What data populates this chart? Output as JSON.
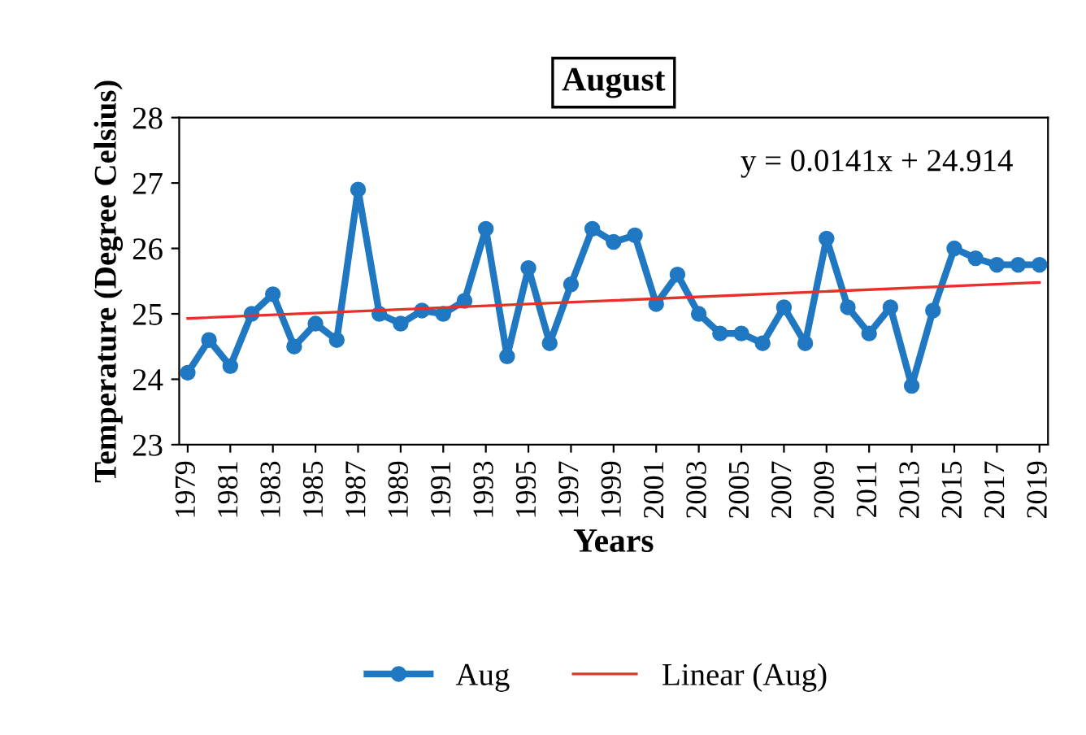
{
  "chart_data": {
    "type": "line",
    "title": "August",
    "xlabel": "Years",
    "ylabel": "Temperature (Degree Celsius)",
    "x": [
      1979,
      1980,
      1981,
      1982,
      1983,
      1984,
      1985,
      1986,
      1987,
      1988,
      1989,
      1990,
      1991,
      1992,
      1993,
      1994,
      1995,
      1996,
      1997,
      1998,
      1999,
      2000,
      2001,
      2002,
      2003,
      2004,
      2005,
      2006,
      2007,
      2008,
      2009,
      2010,
      2011,
      2012,
      2013,
      2014,
      2015,
      2016,
      2017,
      2018,
      2019
    ],
    "series": [
      {
        "name": "Aug",
        "color": "#1f78c1",
        "marker": "circle",
        "values": [
          24.1,
          24.6,
          24.2,
          25.0,
          25.3,
          24.5,
          24.85,
          24.6,
          26.9,
          25.0,
          24.85,
          25.05,
          25.0,
          25.2,
          26.3,
          24.35,
          25.7,
          24.55,
          25.45,
          26.3,
          26.1,
          26.2,
          25.15,
          25.6,
          25.0,
          24.7,
          24.7,
          24.55,
          25.1,
          24.55,
          26.15,
          25.1,
          24.7,
          25.1,
          23.9,
          25.05,
          26.0,
          25.85,
          25.75,
          25.75,
          25.75
        ]
      },
      {
        "name": "Linear (Aug)",
        "color": "#e8302a",
        "marker": "none",
        "x": [
          1979,
          2019
        ],
        "values": [
          24.93,
          25.48
        ]
      }
    ],
    "annotations": [
      "y = 0.0141x + 24.914"
    ],
    "xlim": [
      1978.6,
      2019.4
    ],
    "xticks": [
      1979,
      1981,
      1983,
      1985,
      1987,
      1989,
      1991,
      1993,
      1995,
      1997,
      1999,
      2001,
      2003,
      2005,
      2007,
      2009,
      2011,
      2013,
      2015,
      2017,
      2019
    ],
    "ylim": [
      23,
      28
    ],
    "yticks": [
      23,
      24,
      25,
      26,
      27,
      28
    ],
    "grid": false,
    "legend": "bottom"
  }
}
